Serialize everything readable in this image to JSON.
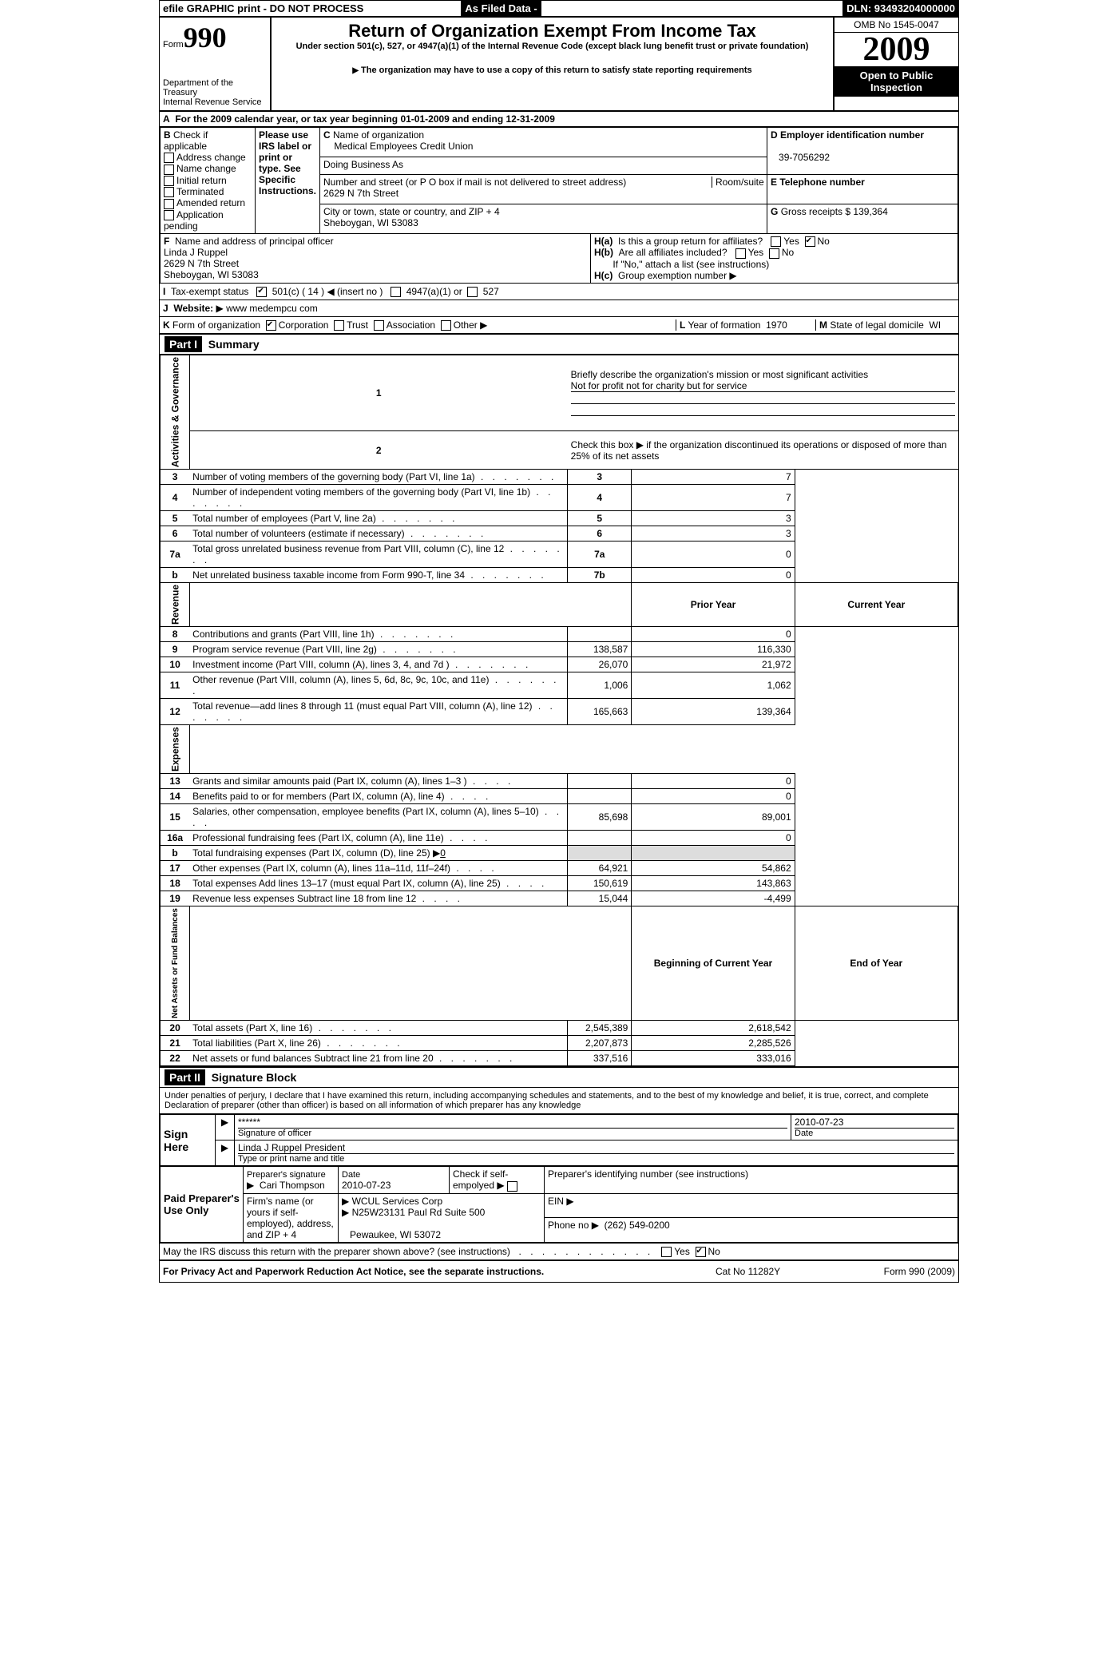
{
  "top_banner": {
    "efile": "efile GRAPHIC print - DO NOT PROCESS",
    "asfiled": "As Filed Data -",
    "dln_label": "DLN:",
    "dln": "93493204000000"
  },
  "header": {
    "form_label": "Form",
    "form_no": "990",
    "title": "Return of Organization Exempt From Income Tax",
    "subtitle": "Under section 501(c), 527, or 4947(a)(1) of the Internal Revenue Code (except black lung benefit trust or private foundation)",
    "copy_note": "The organization may have to use a copy of this return to satisfy state reporting requirements",
    "dept": "Department of the Treasury",
    "irs": "Internal Revenue Service",
    "omb": "OMB No  1545-0047",
    "year": "2009",
    "open": "Open to Public Inspection"
  },
  "A": {
    "line": "For the 2009 calendar year, or tax year beginning 01-01-2009   and ending 12-31-2009"
  },
  "B": {
    "title": "Check if applicable",
    "items": [
      "Address change",
      "Name change",
      "Initial return",
      "Terminated",
      "Amended return",
      "Application pending"
    ],
    "irs_note": "Please use IRS label or print or type. See Specific Instructions."
  },
  "C": {
    "name_label": "Name of organization",
    "name": "Medical Employees Credit Union",
    "dba_label": "Doing Business As",
    "addr_label": "Number and street (or P O  box if mail is not delivered to street address)",
    "room_label": "Room/suite",
    "addr": "2629 N 7th Street",
    "city_label": "City or town, state or country, and ZIP + 4",
    "city": "Sheboygan, WI  53083"
  },
  "D": {
    "label": "Employer identification number",
    "ein": "39-7056292"
  },
  "E": {
    "label": "Telephone number"
  },
  "G": {
    "label": "Gross receipts $",
    "val": "139,364"
  },
  "F": {
    "label": "Name and address of principal officer",
    "name": "Linda J Ruppel",
    "addr1": "2629 N 7th Street",
    "addr2": "Sheboygan, WI  53083"
  },
  "H": {
    "a": "Is this a group return for affiliates?",
    "a_no": true,
    "b": "Are all affiliates included?",
    "b_note": "If \"No,\" attach a list  (see instructions)",
    "c": "Group exemption number"
  },
  "I": {
    "label": "Tax-exempt status",
    "c501": "501(c) ( 14 )",
    "insert": "(insert no )",
    "a4947": "4947(a)(1) or",
    "s527": "527"
  },
  "J": {
    "label": "Website:",
    "val": "www medempcu com"
  },
  "K": {
    "label": "Form of organization",
    "opts": [
      "Corporation",
      "Trust",
      "Association",
      "Other"
    ]
  },
  "L": {
    "label": "Year of formation",
    "val": "1970"
  },
  "M": {
    "label": "State of legal domicile",
    "val": "WI"
  },
  "part1": {
    "title": "Summary",
    "mission_label": "Briefly describe the organization's mission or most significant activities",
    "mission": "Not for profit not for charity but for service",
    "line2": "Check this box ▶     if the organization discontinued its operations or disposed of more than 25% of its net assets",
    "col_prior": "Prior Year",
    "col_curr": "Current Year",
    "col_boy": "Beginning of Current Year",
    "col_eoy": "End of Year",
    "rows": [
      {
        "n": "3",
        "t": "Number of voting members of the governing body (Part VI, line 1a)",
        "box": "3",
        "v": "7"
      },
      {
        "n": "4",
        "t": "Number of independent voting members of the governing body (Part VI, line 1b)",
        "box": "4",
        "v": "7"
      },
      {
        "n": "5",
        "t": "Total number of employees (Part V, line 2a)",
        "box": "5",
        "v": "3"
      },
      {
        "n": "6",
        "t": "Total number of volunteers (estimate if necessary)",
        "box": "6",
        "v": "3"
      },
      {
        "n": "7a",
        "t": "Total gross unrelated business revenue from Part VIII, column (C), line 12",
        "box": "7a",
        "v": "0"
      },
      {
        "n": "b",
        "t": "Net unrelated business taxable income from Form 990-T, line 34",
        "box": "7b",
        "v": "0"
      }
    ],
    "revenue": [
      {
        "n": "8",
        "t": "Contributions and grants (Part VIII, line 1h)",
        "p": "",
        "c": "0"
      },
      {
        "n": "9",
        "t": "Program service revenue (Part VIII, line 2g)",
        "p": "138,587",
        "c": "116,330"
      },
      {
        "n": "10",
        "t": "Investment income (Part VIII, column (A), lines 3, 4, and 7d )",
        "p": "26,070",
        "c": "21,972"
      },
      {
        "n": "11",
        "t": "Other revenue (Part VIII, column (A), lines 5, 6d, 8c, 9c, 10c, and 11e)",
        "p": "1,006",
        "c": "1,062"
      },
      {
        "n": "12",
        "t": "Total revenue—add lines 8 through 11 (must equal Part VIII, column (A), line 12)",
        "p": "165,663",
        "c": "139,364"
      }
    ],
    "expenses": [
      {
        "n": "13",
        "t": "Grants and similar amounts paid (Part IX, column (A), lines 1–3 )",
        "p": "",
        "c": "0"
      },
      {
        "n": "14",
        "t": "Benefits paid to or for members (Part IX, column (A), line 4)",
        "p": "",
        "c": "0"
      },
      {
        "n": "15",
        "t": "Salaries, other compensation, employee benefits (Part IX, column (A), lines 5–10)",
        "p": "85,698",
        "c": "89,001"
      },
      {
        "n": "16a",
        "t": "Professional fundraising fees (Part IX, column (A), line 11e)",
        "p": "",
        "c": "0"
      },
      {
        "n": "b",
        "t": "Total fundraising expenses (Part IX, column (D), line 25) ▶",
        "sub": "0",
        "singlespan": true
      },
      {
        "n": "17",
        "t": "Other expenses (Part IX, column (A), lines 11a–11d, 11f–24f)",
        "p": "64,921",
        "c": "54,862"
      },
      {
        "n": "18",
        "t": "Total expenses  Add lines 13–17 (must equal Part IX, column (A), line 25)",
        "p": "150,619",
        "c": "143,863"
      },
      {
        "n": "19",
        "t": "Revenue less expenses  Subtract line 18 from line 12",
        "p": "15,044",
        "c": "-4,499"
      }
    ],
    "netassets": [
      {
        "n": "20",
        "t": "Total assets (Part X, line 16)",
        "p": "2,545,389",
        "c": "2,618,542"
      },
      {
        "n": "21",
        "t": "Total liabilities (Part X, line 26)",
        "p": "2,207,873",
        "c": "2,285,526"
      },
      {
        "n": "22",
        "t": "Net assets or fund balances  Subtract line 21 from line 20",
        "p": "337,516",
        "c": "333,016"
      }
    ],
    "groups": {
      "g1": "Activities & Governance",
      "g2": "Revenue",
      "g3": "Expenses",
      "g4": "Net Assets or Fund Balances"
    }
  },
  "part2": {
    "title": "Signature Block",
    "perjury": "Under penalties of perjury, I declare that I have examined this return, including accompanying schedules and statements, and to the best of my knowledge and belief, it is true, correct, and complete  Declaration of preparer (other than officer) is based on all information of which preparer has any knowledge",
    "sign_here": "Sign Here",
    "sig_stars": "******",
    "sig_officer": "Signature of officer",
    "sig_date_label": "Date",
    "sig_date": "2010-07-23",
    "typed": "Linda J Ruppel President",
    "typed_label": "Type or print name and title",
    "paid": "Paid Preparer's Use Only",
    "prep_sig_label": "Preparer's signature",
    "prep_name": "Cari Thompson",
    "prep_date_label": "Date",
    "prep_date": "2010-07-23",
    "self_label": "Check if self-empolyed ▶",
    "ptin_label": "Preparer's identifying number (see instructions)",
    "firm_label": "Firm's name (or yours if self-employed), address, and ZIP + 4",
    "firm_name": "WCUL Services Corp",
    "firm_addr": "N25W23131 Paul Rd Suite 500",
    "firm_city": "Pewaukee, WI  53072",
    "ein_label": "EIN ▶",
    "phone_label": "Phone no  ▶",
    "phone": "(262) 549-0200",
    "discuss": "May the IRS discuss this return with the preparer shown above? (see instructions)",
    "discuss_no": true
  },
  "footer": {
    "privacy": "For Privacy Act and Paperwork Reduction Act Notice, see the separate instructions.",
    "cat": "Cat  No  11282Y",
    "form": "Form 990 (2009)"
  }
}
